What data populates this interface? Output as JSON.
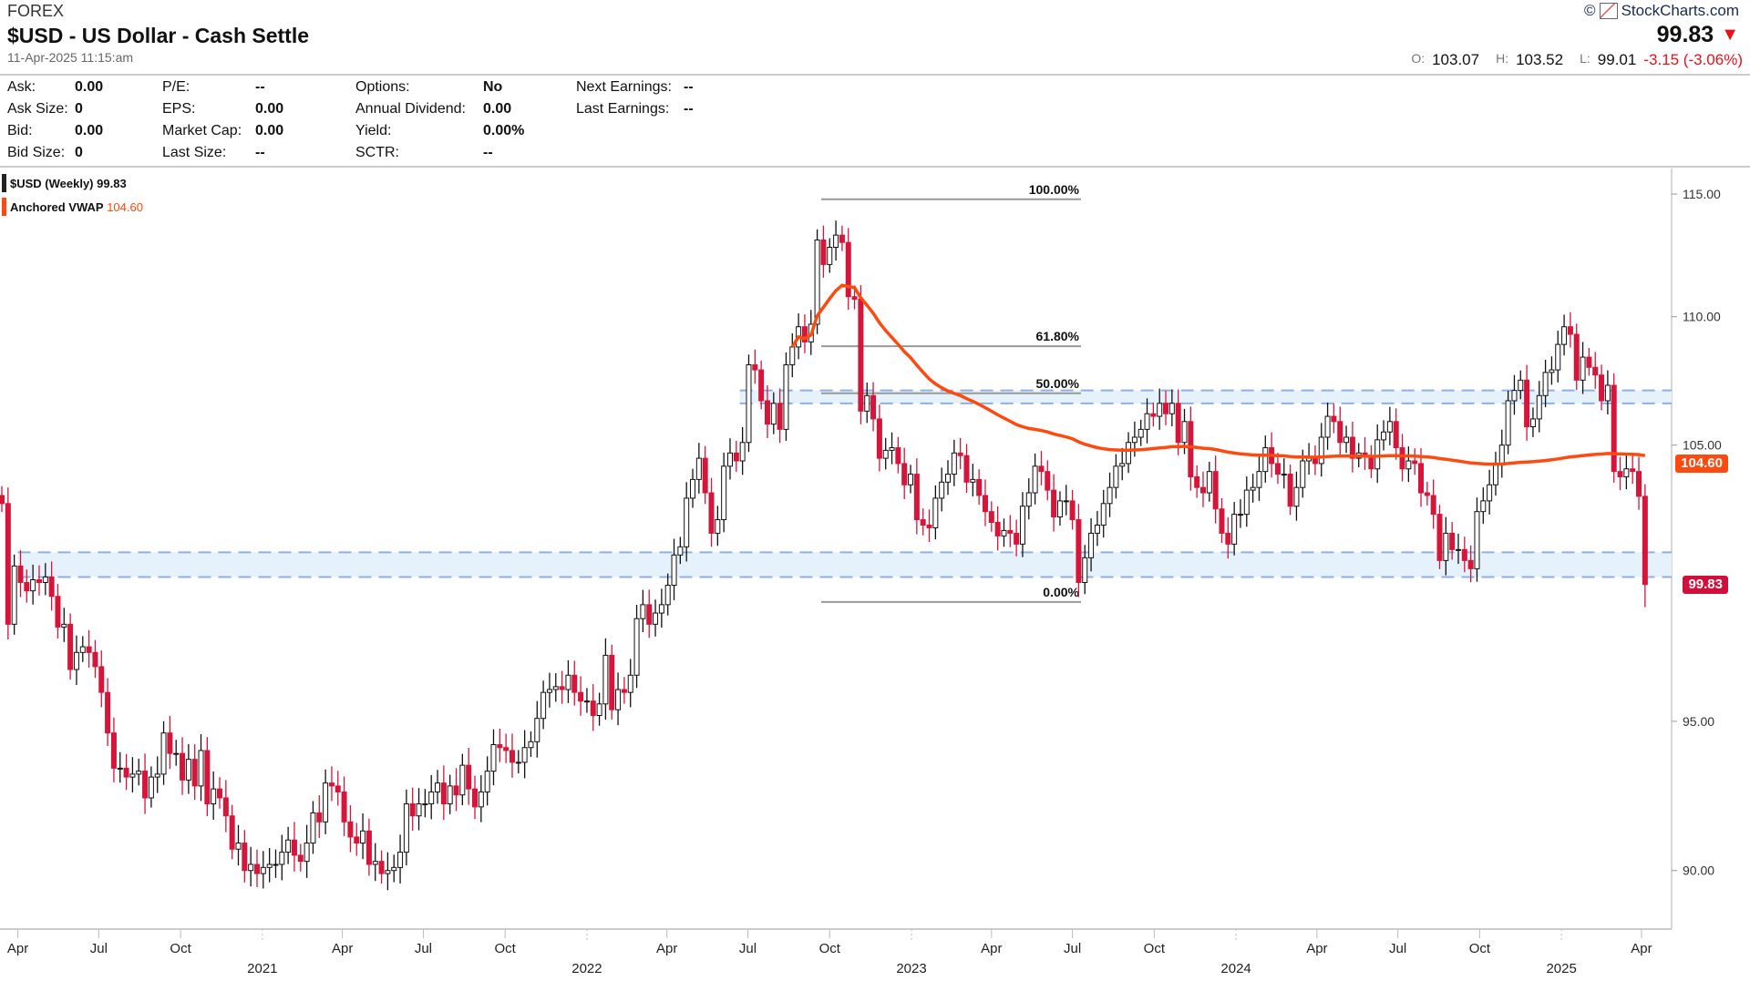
{
  "header": {
    "exchange": "FOREX",
    "title": "$USD - US Dollar - Cash Settle",
    "timestamp": "11-Apr-2025 11:15:am",
    "brand": "StockCharts.com",
    "copyright": "©",
    "last_price": "99.83",
    "direction": "down",
    "open_label": "O:",
    "open": "103.07",
    "high_label": "H:",
    "high": "103.52",
    "low_label": "L:",
    "low": "99.01",
    "change": "-3.15 (-3.06%)"
  },
  "info": [
    [
      {
        "k": "Ask:",
        "v": "0.00"
      },
      {
        "k": "Ask Size:",
        "v": "0"
      },
      {
        "k": "Bid:",
        "v": "0.00"
      },
      {
        "k": "Bid Size:",
        "v": "0"
      }
    ],
    [
      {
        "k": "P/E:",
        "v": "--"
      },
      {
        "k": "EPS:",
        "v": "0.00"
      },
      {
        "k": "Market Cap:",
        "v": "0.00"
      },
      {
        "k": "Last Size:",
        "v": "--"
      }
    ],
    [
      {
        "k": "Options:",
        "v": "No"
      },
      {
        "k": "Annual Dividend:",
        "v": "0.00"
      },
      {
        "k": "Yield:",
        "v": "0.00%"
      },
      {
        "k": "SCTR:",
        "v": "--"
      }
    ],
    [
      {
        "k": "Next Earnings:",
        "v": "--"
      },
      {
        "k": "Last Earnings:",
        "v": "--"
      }
    ]
  ],
  "legend": {
    "series_label": "$USD (Weekly)",
    "series_value": "99.83",
    "vwap_label": "Anchored VWAP",
    "vwap_value": "104.60"
  },
  "colors": {
    "up": "#111111",
    "down": "#d6153a",
    "vwap": "#ff4a10",
    "zone": "#8fb0e0",
    "zone_fill": "#e6f2fb",
    "fib": "#999999",
    "price_tag": "#d0103a"
  },
  "chart_data": {
    "type": "candlestick",
    "title": "$USD (Weekly)",
    "scale": "log",
    "ylim": [
      88,
      116
    ],
    "yticks": [
      90,
      95,
      105,
      110,
      115
    ],
    "ytick_labels": [
      "90.00",
      "95.00",
      "105.00",
      "110.00",
      "115.00"
    ],
    "start_week": "2020-03-14",
    "x_month_labels": [
      "Apr",
      "Jul",
      "Oct"
    ],
    "x_year_labels": [
      "2021",
      "2022",
      "2023",
      "2024",
      "2025"
    ],
    "x_last_label": "Apr",
    "closes": [
      102.8,
      98.4,
      100.5,
      99.9,
      99.6,
      100.0,
      99.9,
      100.1,
      99.4,
      98.3,
      98.4,
      96.8,
      97.4,
      97.6,
      97.4,
      96.9,
      96.0,
      94.6,
      93.4,
      93.4,
      93.1,
      93.2,
      93.3,
      92.4,
      93.1,
      93.2,
      94.6,
      93.9,
      93.9,
      93.0,
      93.7,
      92.8,
      94.0,
      92.2,
      92.7,
      92.4,
      91.8,
      90.7,
      90.9,
      90.0,
      90.2,
      89.9,
      90.1,
      90.2,
      90.2,
      90.6,
      91.0,
      90.5,
      90.3,
      90.9,
      91.9,
      91.6,
      92.9,
      92.8,
      92.6,
      91.6,
      91.1,
      90.9,
      91.3,
      90.2,
      90.3,
      89.9,
      90.0,
      90.1,
      90.6,
      92.2,
      91.8,
      92.2,
      92.2,
      92.6,
      92.9,
      92.2,
      92.8,
      92.5,
      93.5,
      92.7,
      92.1,
      92.6,
      93.3,
      94.2,
      94.1,
      94.0,
      93.6,
      93.6,
      94.1,
      94.3,
      95.1,
      96.0,
      96.1,
      96.2,
      96.1,
      96.6,
      96.0,
      95.7,
      95.7,
      95.2,
      95.6,
      97.3,
      95.4,
      96.1,
      96.0,
      96.6,
      98.6,
      99.1,
      98.4,
      98.8,
      99.1,
      99.8,
      100.9,
      101.2,
      103.0,
      103.7,
      104.5,
      103.2,
      101.7,
      102.2,
      104.2,
      104.7,
      104.4,
      105.1,
      108.1,
      107.9,
      106.7,
      105.8,
      106.6,
      105.6,
      108.1,
      108.8,
      109.6,
      109.0,
      109.7,
      113.1,
      112.1,
      112.8,
      113.3,
      113.0,
      110.8,
      110.7,
      106.3,
      106.9,
      106.0,
      104.5,
      104.8,
      104.9,
      104.3,
      103.5,
      103.9,
      102.2,
      102.0,
      101.9,
      103.0,
      103.6,
      103.9,
      104.7,
      104.6,
      103.6,
      103.7,
      103.1,
      102.5,
      102.1,
      101.6,
      101.8,
      101.7,
      101.3,
      102.7,
      103.2,
      104.2,
      104.0,
      103.3,
      102.3,
      102.9,
      102.9,
      102.2,
      99.9,
      100.8,
      101.7,
      102.0,
      102.8,
      103.4,
      104.2,
      104.3,
      105.1,
      105.3,
      105.6,
      106.2,
      106.1,
      106.6,
      106.2,
      106.6,
      105.1,
      105.9,
      103.8,
      103.4,
      103.2,
      104.0,
      102.6,
      101.7,
      101.3,
      102.4,
      102.4,
      103.3,
      103.4,
      104.0,
      104.9,
      104.3,
      103.9,
      103.9,
      102.7,
      103.4,
      104.4,
      104.5,
      104.3,
      105.3,
      106.1,
      105.9,
      105.1,
      105.3,
      104.5,
      104.7,
      104.6,
      104.1,
      105.2,
      105.5,
      105.9,
      104.9,
      104.1,
      104.4,
      104.3,
      103.2,
      103.1,
      102.4,
      100.7,
      101.7,
      101.1,
      101.1,
      100.7,
      100.4,
      102.5,
      102.9,
      103.5,
      104.3,
      105.0,
      106.7,
      107.1,
      107.5,
      105.7,
      106.0,
      106.9,
      107.8,
      107.9,
      108.9,
      109.6,
      109.3,
      107.5,
      108.4,
      108.0,
      107.7,
      106.7,
      107.3,
      104.0,
      103.8,
      104.1,
      104.0,
      103.07,
      99.83
    ],
    "last_candle": {
      "open": 103.07,
      "high": 103.52,
      "low": 99.01,
      "close": 99.83
    },
    "vwap_anchor_index": 127,
    "vwap_last": 104.6,
    "fibonacci": {
      "high": 114.78,
      "low": 99.2,
      "levels": [
        {
          "label": "100.00%",
          "value": 114.78
        },
        {
          "label": "61.80%",
          "value": 108.83
        },
        {
          "label": "50.00%",
          "value": 106.99
        },
        {
          "label": "0.00%",
          "value": 99.2
        }
      ]
    },
    "zones": [
      {
        "top": 107.1,
        "bottom": 106.6,
        "from_index": 119
      },
      {
        "top": 101.0,
        "bottom": 100.1,
        "from_index": 3
      }
    ],
    "price_tags": [
      {
        "label": "104.60",
        "value": 104.6,
        "kind": "vwap"
      },
      {
        "label": "99.83",
        "value": 99.83,
        "kind": "price"
      }
    ]
  }
}
